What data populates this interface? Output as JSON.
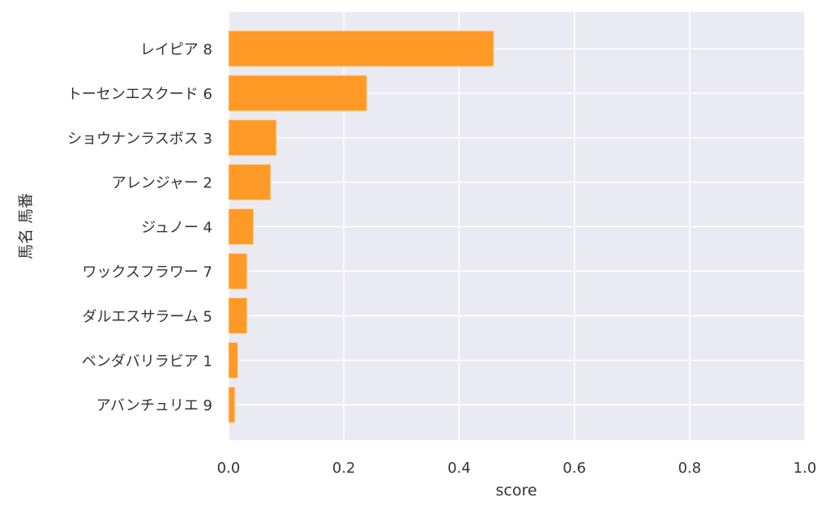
{
  "chart_data": {
    "type": "bar",
    "orientation": "horizontal",
    "categories": [
      "レイピア 8",
      "トーセンエスクード 6",
      "ショウナンラスボス 3",
      "アレンジャー 2",
      "ジュノー 4",
      "ワックスフラワー 7",
      "ダルエスサラーム 5",
      "ベンダバリラビア 1",
      "アバンチュリエ 9"
    ],
    "values": [
      0.46,
      0.24,
      0.083,
      0.073,
      0.043,
      0.032,
      0.032,
      0.016,
      0.011
    ],
    "xlabel": "score",
    "ylabel": "馬名 馬番",
    "xlim": [
      0,
      1.0
    ],
    "xticks": [
      "0.0",
      "0.2",
      "0.4",
      "0.6",
      "0.8",
      "1.0"
    ],
    "grid": true,
    "colors": {
      "bar": "#ff9a27",
      "bar_edge": "#ffd6a8",
      "plot_background": "#eaeaf2",
      "grid": "#ffffff"
    }
  }
}
